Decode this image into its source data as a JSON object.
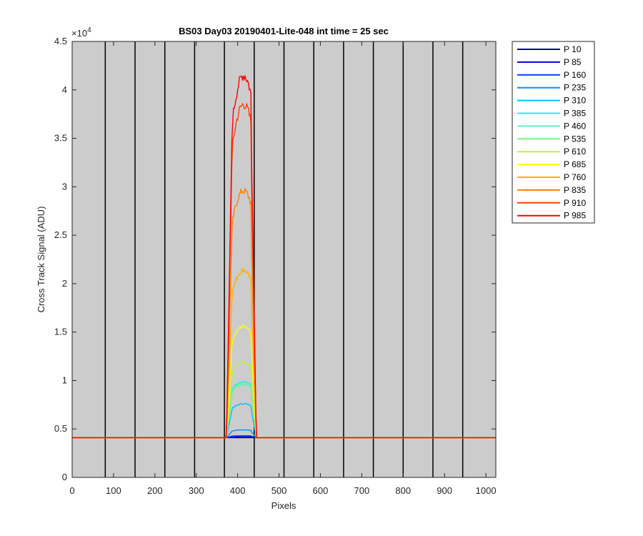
{
  "chart_data": {
    "type": "line",
    "title": "BS03 Day03 20190401-Lite-048 int time = 25 sec",
    "xlabel": "Pixels",
    "ylabel": "Cross Track Signal (ADU)",
    "y_exponent_label": "×10",
    "y_exponent_power": "4",
    "xlim": [
      0,
      1024
    ],
    "ylim": [
      0,
      4.5
    ],
    "x_ticks": [
      0,
      100,
      200,
      300,
      400,
      500,
      600,
      700,
      800,
      900,
      1000
    ],
    "x_tick_labels": [
      "0",
      "100",
      "200",
      "300",
      "400",
      "500",
      "600",
      "700",
      "800",
      "900",
      "1000"
    ],
    "y_ticks": [
      0,
      0.5,
      1,
      1.5,
      2,
      2.5,
      3,
      3.5,
      4,
      4.5
    ],
    "y_tick_labels": [
      "0",
      "0.5",
      "1",
      "1.5",
      "2",
      "2.5",
      "3",
      "3.5",
      "4",
      "4.5"
    ],
    "vertical_lines_x": [
      80,
      152,
      224,
      296,
      368,
      440,
      512,
      584,
      656,
      728,
      800,
      872,
      944
    ],
    "baseline": 0.41,
    "rise_x": [
      373,
      387
    ],
    "fall_x": [
      432,
      445
    ],
    "plot_background": "#cccccc",
    "legend_position": "outside-right",
    "series": [
      {
        "name": "P 10",
        "color": "#00008f",
        "peak": 0.41
      },
      {
        "name": "P 85",
        "color": "#0000e0",
        "peak": 0.42
      },
      {
        "name": "P 160",
        "color": "#0040ff",
        "peak": 0.43
      },
      {
        "name": "P 235",
        "color": "#0090ff",
        "peak": 0.49
      },
      {
        "name": "P 310",
        "color": "#00c0ff",
        "peak": 0.76
      },
      {
        "name": "P 385",
        "color": "#20f0f0",
        "peak": 0.99
      },
      {
        "name": "P 460",
        "color": "#60f0c0",
        "peak": 0.96
      },
      {
        "name": "P 535",
        "color": "#80f080",
        "peak": 0.97
      },
      {
        "name": "P 610",
        "color": "#c0f040",
        "peak": 1.19
      },
      {
        "name": "P 685",
        "color": "#ffff00",
        "peak": 1.56
      },
      {
        "name": "P 760",
        "color": "#ffb000",
        "peak": 2.14
      },
      {
        "name": "P 835",
        "color": "#ff8000",
        "peak": 2.96
      },
      {
        "name": "P 910",
        "color": "#ff4000",
        "peak": 3.85
      },
      {
        "name": "P 985",
        "color": "#ff0000",
        "peak": 4.15
      }
    ]
  }
}
